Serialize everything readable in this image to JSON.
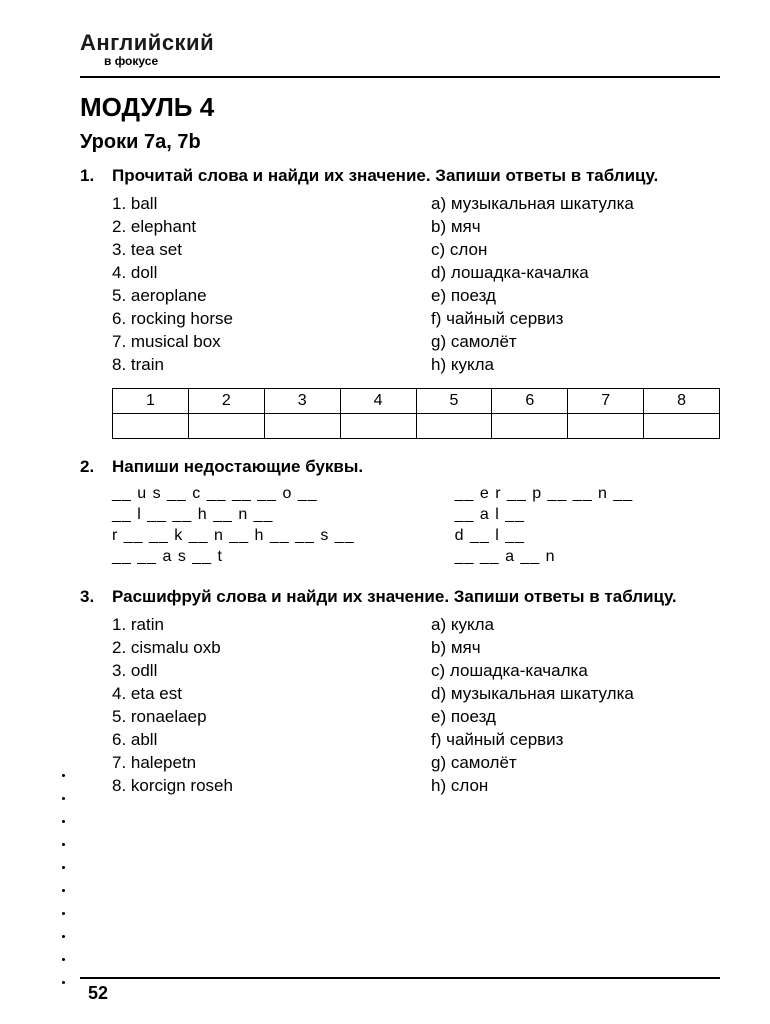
{
  "logo": {
    "main": "Английский",
    "sub": "в фокусе"
  },
  "module_title": "МОДУЛЬ 4",
  "lesson_title": "Уроки 7a, 7b",
  "page_number": "52",
  "task1": {
    "num": "1.",
    "instruction": "Прочитай слова и найди их значение. Запиши ответы в таблицу.",
    "left": [
      "1. ball",
      "2. elephant",
      "3. tea set",
      "4. doll",
      "5. aeroplane",
      "6. rocking horse",
      "7. musical box",
      "8. train"
    ],
    "right": [
      "a) музыкальная шкатулка",
      "b) мяч",
      "c) слон",
      "d) лошадка-качалка",
      "e) поезд",
      "f) чайный сервиз",
      "g) самолёт",
      "h) кукла"
    ],
    "table_headers": [
      "1",
      "2",
      "3",
      "4",
      "5",
      "6",
      "7",
      "8"
    ]
  },
  "task2": {
    "num": "2.",
    "instruction": "Напиши недостающие буквы.",
    "left": [
      "__ u s __ c __ __  __ o __",
      "__ l __ __ h __ n __",
      "r __ __ k __ n __  h __ __ s __",
      "__ __ a   s __ t"
    ],
    "right": [
      "__ e r __ p __ __ n __",
      "__ a l __",
      "d __ l __",
      "__ __ a __ n"
    ]
  },
  "task3": {
    "num": "3.",
    "instruction": "Расшифруй слова и найди их значение. Запиши ответы в таблицу.",
    "left": [
      "1. ratin",
      "2. cismalu oxb",
      "3. odll",
      "4. eta est",
      "5. ronaelaep",
      "6. abll",
      "7. halepetn",
      "8. korcign roseh"
    ],
    "right": [
      "a) кукла",
      "b) мяч",
      "c) лошадка-качалка",
      "d) музыкальная шкатулка",
      "e) поезд",
      "f) чайный сервиз",
      "g) самолёт",
      "h) слон"
    ]
  }
}
